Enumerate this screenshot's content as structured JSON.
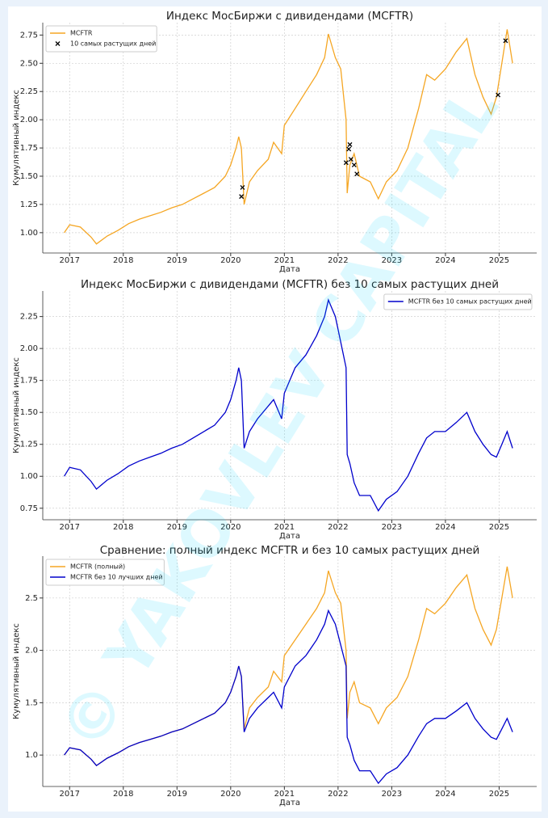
{
  "watermark": "© YAKOVLEV CAPITAL",
  "chart_data": [
    {
      "type": "line",
      "title": "Индекс МосБиржи с дивидендами (MCFTR)",
      "xlabel": "Дата",
      "ylabel": "Кумулятивный индекс",
      "legend": "upper left",
      "grid": true,
      "x": [
        2016.9,
        2017.0,
        2017.2,
        2017.4,
        2017.5,
        2017.7,
        2017.9,
        2018.1,
        2018.3,
        2018.5,
        2018.7,
        2018.9,
        2019.1,
        2019.3,
        2019.5,
        2019.7,
        2019.9,
        2020.0,
        2020.1,
        2020.15,
        2020.2,
        2020.25,
        2020.35,
        2020.5,
        2020.7,
        2020.8,
        2020.95,
        2021.0,
        2021.2,
        2021.4,
        2021.6,
        2021.75,
        2021.82,
        2021.95,
        2022.05,
        2022.15,
        2022.17,
        2022.22,
        2022.3,
        2022.4,
        2022.6,
        2022.75,
        2022.9,
        2023.1,
        2023.3,
        2023.5,
        2023.65,
        2023.8,
        2024.0,
        2024.2,
        2024.4,
        2024.55,
        2024.7,
        2024.85,
        2024.95,
        2025.05,
        2025.15,
        2025.25
      ],
      "xlim": [
        2016.5,
        2025.7
      ],
      "xticks": [
        2017,
        2018,
        2019,
        2020,
        2021,
        2022,
        2023,
        2024,
        2025
      ],
      "ylim": [
        0.82,
        2.86
      ],
      "yticks": [
        {
          "value": 1.0,
          "label": "1.00"
        },
        {
          "value": 1.25,
          "label": "1.25"
        },
        {
          "value": 1.5,
          "label": "1.50"
        },
        {
          "value": 1.75,
          "label": "1.75"
        },
        {
          "value": 2.0,
          "label": "2.00"
        },
        {
          "value": 2.25,
          "label": "2.25"
        },
        {
          "value": 2.5,
          "label": "2.50"
        },
        {
          "value": 2.75,
          "label": "2.75"
        }
      ],
      "series": [
        {
          "name": "MCFTR",
          "color": "#f5a623",
          "values": [
            1.0,
            1.07,
            1.05,
            0.96,
            0.9,
            0.97,
            1.02,
            1.08,
            1.12,
            1.15,
            1.18,
            1.22,
            1.25,
            1.3,
            1.35,
            1.4,
            1.5,
            1.6,
            1.75,
            1.85,
            1.75,
            1.25,
            1.45,
            1.55,
            1.65,
            1.8,
            1.7,
            1.95,
            2.1,
            2.25,
            2.4,
            2.55,
            2.76,
            2.55,
            2.45,
            2.0,
            1.35,
            1.6,
            1.7,
            1.5,
            1.45,
            1.3,
            1.45,
            1.55,
            1.75,
            2.1,
            2.4,
            2.35,
            2.45,
            2.6,
            2.72,
            2.4,
            2.2,
            2.05,
            2.2,
            2.5,
            2.8,
            2.5
          ]
        },
        {
          "name": "10 самых растущих дней",
          "type": "scatter",
          "color": "#000000",
          "x": [
            2020.2,
            2020.22,
            2022.15,
            2022.2,
            2022.22,
            2022.24,
            2022.3,
            2022.35,
            2024.98,
            2025.12
          ],
          "values": [
            1.32,
            1.4,
            1.62,
            1.74,
            1.78,
            1.65,
            1.6,
            1.52,
            2.22,
            2.7
          ]
        }
      ]
    },
    {
      "type": "line",
      "title": "Индекс МосБиржи с дивидендами (MCFTR) без 10 самых растущих дней",
      "xlabel": "Дата",
      "ylabel": "Кумулятивный индекс",
      "legend": "upper right",
      "grid": true,
      "x": [
        2016.9,
        2017.0,
        2017.2,
        2017.4,
        2017.5,
        2017.7,
        2017.9,
        2018.1,
        2018.3,
        2018.5,
        2018.7,
        2018.9,
        2019.1,
        2019.3,
        2019.5,
        2019.7,
        2019.9,
        2020.0,
        2020.1,
        2020.15,
        2020.2,
        2020.25,
        2020.35,
        2020.5,
        2020.7,
        2020.8,
        2020.95,
        2021.0,
        2021.2,
        2021.4,
        2021.6,
        2021.75,
        2021.82,
        2021.95,
        2022.05,
        2022.15,
        2022.17,
        2022.22,
        2022.3,
        2022.4,
        2022.6,
        2022.75,
        2022.9,
        2023.1,
        2023.3,
        2023.5,
        2023.65,
        2023.8,
        2024.0,
        2024.2,
        2024.4,
        2024.55,
        2024.7,
        2024.85,
        2024.95,
        2025.05,
        2025.15,
        2025.25
      ],
      "xlim": [
        2016.5,
        2025.7
      ],
      "xticks": [
        2017,
        2018,
        2019,
        2020,
        2021,
        2022,
        2023,
        2024,
        2025
      ],
      "ylim": [
        0.66,
        2.45
      ],
      "yticks": [
        0.75,
        {
          "value": 1.0,
          "label": "1.00"
        },
        1.25,
        {
          "value": 1.5,
          "label": "1.50"
        },
        1.75,
        {
          "value": 2.0,
          "label": "2.00"
        },
        2.25
      ],
      "series": [
        {
          "name": "MCFTR без 10 самых растущих дней",
          "color": "#0000cc",
          "values": [
            1.0,
            1.07,
            1.05,
            0.96,
            0.9,
            0.97,
            1.02,
            1.08,
            1.12,
            1.15,
            1.18,
            1.22,
            1.25,
            1.3,
            1.35,
            1.4,
            1.5,
            1.6,
            1.75,
            1.85,
            1.75,
            1.22,
            1.35,
            1.45,
            1.55,
            1.6,
            1.45,
            1.65,
            1.85,
            1.95,
            2.1,
            2.25,
            2.38,
            2.25,
            2.05,
            1.85,
            1.17,
            1.1,
            0.95,
            0.85,
            0.85,
            0.73,
            0.82,
            0.88,
            1.0,
            1.18,
            1.3,
            1.35,
            1.35,
            1.42,
            1.5,
            1.35,
            1.25,
            1.17,
            1.15,
            1.25,
            1.35,
            1.22
          ]
        }
      ]
    },
    {
      "type": "line",
      "title": "Сравнение: полный индекс MCFTR и без 10 самых растущих дней",
      "xlabel": "Дата",
      "ylabel": "Кумулятивный индекс",
      "legend": "upper left",
      "grid": true,
      "x": [
        2016.9,
        2017.0,
        2017.2,
        2017.4,
        2017.5,
        2017.7,
        2017.9,
        2018.1,
        2018.3,
        2018.5,
        2018.7,
        2018.9,
        2019.1,
        2019.3,
        2019.5,
        2019.7,
        2019.9,
        2020.0,
        2020.1,
        2020.15,
        2020.2,
        2020.25,
        2020.35,
        2020.5,
        2020.7,
        2020.8,
        2020.95,
        2021.0,
        2021.2,
        2021.4,
        2021.6,
        2021.75,
        2021.82,
        2021.95,
        2022.05,
        2022.15,
        2022.17,
        2022.22,
        2022.3,
        2022.4,
        2022.6,
        2022.75,
        2022.9,
        2023.1,
        2023.3,
        2023.5,
        2023.65,
        2023.8,
        2024.0,
        2024.2,
        2024.4,
        2024.55,
        2024.7,
        2024.85,
        2024.95,
        2025.05,
        2025.15,
        2025.25
      ],
      "xlim": [
        2016.5,
        2025.7
      ],
      "xticks": [
        2017,
        2018,
        2019,
        2020,
        2021,
        2022,
        2023,
        2024,
        2025
      ],
      "ylim": [
        0.7,
        2.9
      ],
      "yticks": [
        {
          "value": 1.0,
          "label": "1.0"
        },
        1.5,
        {
          "value": 2.0,
          "label": "2.0"
        },
        2.5
      ],
      "series": [
        {
          "name": "MCFTR (полный)",
          "color": "#f5a623",
          "values": [
            1.0,
            1.07,
            1.05,
            0.96,
            0.9,
            0.97,
            1.02,
            1.08,
            1.12,
            1.15,
            1.18,
            1.22,
            1.25,
            1.3,
            1.35,
            1.4,
            1.5,
            1.6,
            1.75,
            1.85,
            1.75,
            1.25,
            1.45,
            1.55,
            1.65,
            1.8,
            1.7,
            1.95,
            2.1,
            2.25,
            2.4,
            2.55,
            2.76,
            2.55,
            2.45,
            2.0,
            1.35,
            1.6,
            1.7,
            1.5,
            1.45,
            1.3,
            1.45,
            1.55,
            1.75,
            2.1,
            2.4,
            2.35,
            2.45,
            2.6,
            2.72,
            2.4,
            2.2,
            2.05,
            2.2,
            2.5,
            2.8,
            2.5
          ]
        },
        {
          "name": "MCFTR без 10 лучших дней",
          "color": "#0000cc",
          "values": [
            1.0,
            1.07,
            1.05,
            0.96,
            0.9,
            0.97,
            1.02,
            1.08,
            1.12,
            1.15,
            1.18,
            1.22,
            1.25,
            1.3,
            1.35,
            1.4,
            1.5,
            1.6,
            1.75,
            1.85,
            1.75,
            1.22,
            1.35,
            1.45,
            1.55,
            1.6,
            1.45,
            1.65,
            1.85,
            1.95,
            2.1,
            2.25,
            2.38,
            2.25,
            2.05,
            1.85,
            1.17,
            1.1,
            0.95,
            0.85,
            0.85,
            0.73,
            0.82,
            0.88,
            1.0,
            1.18,
            1.3,
            1.35,
            1.35,
            1.42,
            1.5,
            1.35,
            1.25,
            1.17,
            1.15,
            1.25,
            1.35,
            1.22
          ]
        }
      ]
    }
  ]
}
